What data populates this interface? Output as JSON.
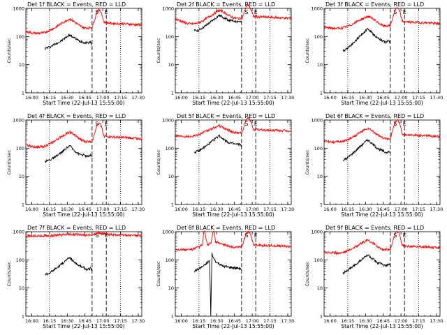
{
  "figure": {
    "panel_xlabel": "Start Time (22-Jul-13 15:55:00)",
    "panel_ylabel": "Counts/sec"
  },
  "colors": {
    "events": "#000000",
    "lld": "#ff0000",
    "axes": "#000000",
    "background": "#ffffff"
  },
  "chart_data": [
    {
      "type": "line",
      "title": "Det 1f  BLACK = Events, RED = LLD",
      "xlabel": "Start Time (22-Jul-13 15:55:00)",
      "ylabel": "Counts/sec",
      "x_unit": "minutes since 15:55:00",
      "xlim": [
        0,
        98
      ],
      "ylim": [
        1,
        1000
      ],
      "yscale": "log",
      "x_ticks": [
        "16:00",
        "16:15",
        "16:30",
        "16:45",
        "17:00",
        "17:15",
        "17:30"
      ],
      "y_ticks": [
        "1",
        "10",
        "100",
        "1000"
      ],
      "markers": [
        "S",
        "E"
      ],
      "series": [
        {
          "name": "BLACK = Events",
          "x": [
            16,
            20,
            25,
            30,
            35,
            37,
            40,
            45,
            48,
            50,
            52,
            55,
            56
          ],
          "y": [
            38,
            42,
            55,
            70,
            100,
            115,
            95,
            70,
            65,
            60,
            62,
            60,
            50
          ]
        },
        {
          "name": "RED = LLD",
          "x": [
            0,
            5,
            10,
            15,
            20,
            25,
            30,
            35,
            37,
            40,
            45,
            50,
            55,
            56,
            58,
            60,
            62,
            64,
            66,
            70,
            75,
            80,
            85,
            90,
            95,
            98
          ],
          "y": [
            150,
            135,
            130,
            135,
            165,
            210,
            290,
            380,
            420,
            360,
            250,
            200,
            210,
            210,
            380,
            750,
            900,
            700,
            320,
            300,
            290,
            285,
            280,
            270,
            260,
            255
          ]
        }
      ]
    },
    {
      "type": "line",
      "title": "Det 2f  BLACK = Events, RED = LLD",
      "xlabel": "Start Time (22-Jul-13 15:55:00)",
      "ylabel": "Counts/sec",
      "x_unit": "minutes since 15:55:00",
      "xlim": [
        0,
        98
      ],
      "ylim": [
        1,
        1000
      ],
      "yscale": "log",
      "x_ticks": [
        "16:00",
        "16:15",
        "16:30",
        "16:45",
        "17:00",
        "17:15",
        "17:30"
      ],
      "y_ticks": [
        "1",
        "10",
        "100",
        "1000"
      ],
      "markers": [
        "S",
        "E"
      ],
      "series": [
        {
          "name": "BLACK = Events",
          "x": [
            16,
            20,
            25,
            30,
            35,
            37,
            40,
            45,
            50,
            55,
            56
          ],
          "y": [
            160,
            170,
            230,
            330,
            480,
            560,
            500,
            380,
            350,
            340,
            310
          ]
        },
        {
          "name": "RED = LLD",
          "x": [
            0,
            5,
            10,
            15,
            20,
            25,
            30,
            35,
            37,
            40,
            45,
            50,
            55,
            56,
            58,
            60,
            62,
            64,
            66,
            70,
            75,
            80,
            85,
            90,
            95,
            98
          ],
          "y": [
            420,
            350,
            290,
            280,
            310,
            400,
            550,
            750,
            850,
            780,
            570,
            450,
            430,
            430,
            650,
            1200,
            1350,
            900,
            520,
            500,
            490,
            480,
            470,
            460,
            450,
            440
          ]
        }
      ]
    },
    {
      "type": "line",
      "title": "Det 3f  BLACK = Events, RED = LLD",
      "xlabel": "Start Time (22-Jul-13 15:55:00)",
      "ylabel": "Counts/sec",
      "x_unit": "minutes since 15:55:00",
      "xlim": [
        0,
        98
      ],
      "ylim": [
        1,
        1000
      ],
      "yscale": "log",
      "x_ticks": [
        "16:00",
        "16:15",
        "16:30",
        "16:45",
        "17:00",
        "17:15",
        "17:30"
      ],
      "y_ticks": [
        "1",
        "10",
        "100",
        "1000"
      ],
      "markers": [
        "S",
        "E"
      ],
      "series": [
        {
          "name": "BLACK = Events",
          "x": [
            16,
            20,
            25,
            30,
            35,
            37,
            40,
            45,
            50,
            52,
            55,
            56
          ],
          "y": [
            30,
            40,
            60,
            100,
            160,
            190,
            140,
            90,
            70,
            62,
            70,
            60
          ]
        },
        {
          "name": "RED = LLD",
          "x": [
            0,
            5,
            10,
            15,
            20,
            25,
            30,
            35,
            37,
            40,
            45,
            50,
            55,
            56,
            58,
            60,
            62,
            64,
            66,
            70,
            75,
            80,
            85,
            90,
            95,
            98
          ],
          "y": [
            215,
            200,
            195,
            200,
            230,
            290,
            380,
            480,
            520,
            460,
            320,
            240,
            240,
            240,
            450,
            900,
            1050,
            800,
            350,
            330,
            320,
            315,
            310,
            300,
            290,
            280
          ]
        }
      ]
    },
    {
      "type": "line",
      "title": "Det 4f  BLACK = Events, RED = LLD",
      "xlabel": "Start Time (22-Jul-13 15:55:00)",
      "ylabel": "Counts/sec",
      "x_unit": "minutes since 15:55:00",
      "xlim": [
        0,
        98
      ],
      "ylim": [
        1,
        1000
      ],
      "yscale": "log",
      "x_ticks": [
        "16:00",
        "16:15",
        "16:30",
        "16:45",
        "17:00",
        "17:15",
        "17:30"
      ],
      "y_ticks": [
        "1",
        "10",
        "100",
        "1000"
      ],
      "markers": [
        "S",
        "E"
      ],
      "series": [
        {
          "name": "BLACK = Events",
          "x": [
            16,
            20,
            25,
            30,
            35,
            37,
            40,
            45,
            50,
            52,
            55,
            56
          ],
          "y": [
            34,
            38,
            48,
            70,
            105,
            125,
            90,
            62,
            55,
            50,
            55,
            48
          ]
        },
        {
          "name": "RED = LLD",
          "x": [
            0,
            5,
            10,
            15,
            20,
            25,
            30,
            35,
            37,
            40,
            45,
            50,
            55,
            56,
            58,
            60,
            62,
            64,
            66,
            70,
            75,
            80,
            85,
            90,
            95,
            98
          ],
          "y": [
            130,
            115,
            110,
            115,
            140,
            185,
            260,
            340,
            380,
            320,
            220,
            170,
            175,
            175,
            330,
            650,
            800,
            600,
            270,
            255,
            245,
            240,
            235,
            230,
            220,
            210
          ]
        }
      ]
    },
    {
      "type": "line",
      "title": "Det 5f  BLACK = Events, RED = LLD",
      "xlabel": "Start Time (22-Jul-13 15:55:00)",
      "ylabel": "Counts/sec",
      "x_unit": "minutes since 15:55:00",
      "xlim": [
        0,
        98
      ],
      "ylim": [
        1,
        1000
      ],
      "yscale": "log",
      "x_ticks": [
        "16:00",
        "16:15",
        "16:30",
        "16:45",
        "17:00",
        "17:15",
        "17:30"
      ],
      "y_ticks": [
        "1",
        "10",
        "100",
        "1000"
      ],
      "markers": [
        "S",
        "E"
      ],
      "series": [
        {
          "name": "BLACK = Events",
          "x": [
            16,
            20,
            25,
            30,
            35,
            37,
            40,
            45,
            50,
            55,
            56
          ],
          "y": [
            72,
            80,
            110,
            160,
            240,
            280,
            220,
            160,
            140,
            135,
            120
          ]
        },
        {
          "name": "RED = LLD",
          "x": [
            0,
            5,
            10,
            15,
            20,
            25,
            30,
            35,
            37,
            40,
            45,
            50,
            55,
            56,
            58,
            60,
            62,
            64,
            66,
            70,
            75,
            80,
            85,
            90,
            95,
            98
          ],
          "y": [
            280,
            270,
            265,
            270,
            310,
            380,
            470,
            580,
            620,
            550,
            430,
            360,
            350,
            350,
            560,
            1050,
            1200,
            850,
            470,
            450,
            440,
            430,
            430,
            420,
            410,
            400
          ]
        }
      ]
    },
    {
      "type": "line",
      "title": "Det 6f  BLACK = Events, RED = LLD",
      "xlabel": "Start Time (22-Jul-13 15:55:00)",
      "ylabel": "Counts/sec",
      "x_unit": "minutes since 15:55:00",
      "xlim": [
        0,
        98
      ],
      "ylim": [
        1,
        1000
      ],
      "yscale": "log",
      "x_ticks": [
        "16:00",
        "16:15",
        "16:30",
        "16:45",
        "17:00",
        "17:15",
        "17:30"
      ],
      "y_ticks": [
        "1",
        "10",
        "100",
        "1000"
      ],
      "markers": [
        "S",
        "E"
      ],
      "series": [
        {
          "name": "BLACK = Events",
          "x": [
            16,
            20,
            25,
            30,
            35,
            37,
            40,
            45,
            50,
            52,
            55,
            56
          ],
          "y": [
            36,
            46,
            70,
            110,
            170,
            200,
            150,
            100,
            78,
            70,
            75,
            65
          ]
        },
        {
          "name": "RED = LLD",
          "x": [
            0,
            5,
            10,
            15,
            20,
            25,
            30,
            35,
            37,
            40,
            45,
            50,
            55,
            56,
            58,
            60,
            62,
            64,
            66,
            70,
            75,
            80,
            85,
            90,
            95,
            98
          ],
          "y": [
            180,
            170,
            165,
            170,
            200,
            260,
            350,
            460,
            500,
            430,
            300,
            220,
            220,
            220,
            420,
            850,
            1000,
            760,
            320,
            300,
            290,
            285,
            280,
            270,
            260,
            250
          ]
        }
      ]
    },
    {
      "type": "line",
      "title": "Det 7f  BLACK = Events, RED = LLD",
      "xlabel": "Start Time (22-Jul-13 15:55:00)",
      "ylabel": "Counts/sec",
      "x_unit": "minutes since 15:55:00",
      "xlim": [
        0,
        98
      ],
      "ylim": [
        1,
        1000
      ],
      "yscale": "log",
      "x_ticks": [
        "16:00",
        "16:15",
        "16:30",
        "16:45",
        "17:00",
        "17:15",
        "17:30"
      ],
      "y_ticks": [
        "1",
        "10",
        "100",
        "1000"
      ],
      "markers": [
        "S",
        "E"
      ],
      "series": [
        {
          "name": "BLACK = Events",
          "x": [
            16,
            20,
            25,
            30,
            35,
            37,
            40,
            45,
            50,
            52,
            55,
            56
          ],
          "y": [
            30,
            34,
            48,
            70,
            105,
            120,
            90,
            62,
            50,
            45,
            50,
            42
          ]
        },
        {
          "name": "RED = LLD",
          "x": [
            0,
            10,
            20,
            30,
            37,
            45,
            55,
            60,
            70,
            80,
            90,
            98
          ],
          "y": [
            700,
            710,
            720,
            760,
            820,
            780,
            740,
            900,
            800,
            760,
            740,
            730
          ]
        }
      ]
    },
    {
      "type": "line",
      "title": "Det 8f  BLACK = Events, RED = LLD",
      "xlabel": "Start Time (22-Jul-13 15:55:00)",
      "ylabel": "Counts/sec",
      "x_unit": "minutes since 15:55:00",
      "xlim": [
        0,
        98
      ],
      "ylim": [
        1,
        1000
      ],
      "yscale": "log",
      "x_ticks": [
        "16:00",
        "16:15",
        "16:30",
        "16:45",
        "17:00",
        "17:15",
        "17:30"
      ],
      "y_ticks": [
        "1",
        "10",
        "100",
        "1000"
      ],
      "markers": [
        "S",
        "E"
      ],
      "series": [
        {
          "name": "BLACK = Events",
          "x": [
            16,
            20,
            25,
            29,
            30,
            31,
            32,
            35,
            38,
            40,
            45,
            50,
            55,
            56
          ],
          "y": [
            40,
            48,
            65,
            95,
            1,
            180,
            120,
            80,
            70,
            60,
            55,
            52,
            50,
            45
          ]
        },
        {
          "name": "RED = LLD",
          "x": [
            0,
            5,
            10,
            15,
            20,
            23,
            24,
            25,
            27,
            30,
            32,
            33,
            34,
            36,
            40,
            45,
            50,
            55,
            56,
            58,
            60,
            62,
            64,
            66,
            70,
            80,
            90,
            98
          ],
          "y": [
            240,
            230,
            230,
            240,
            290,
            340,
            1000,
            1000,
            330,
            380,
            1000,
            1000,
            400,
            420,
            360,
            300,
            280,
            280,
            280,
            500,
            900,
            1000,
            750,
            350,
            330,
            320,
            310,
            300
          ]
        }
      ]
    },
    {
      "type": "line",
      "title": "Det 9f  BLACK = Events, RED = LLD",
      "xlabel": "Start Time (22-Jul-13 15:55:00)",
      "ylabel": "Counts/sec",
      "x_unit": "minutes since 15:55:00",
      "xlim": [
        0,
        98
      ],
      "ylim": [
        1,
        1000
      ],
      "yscale": "log",
      "x_ticks": [
        "16:00",
        "16:15",
        "16:30",
        "16:45",
        "17:00",
        "17:15",
        "17:30"
      ],
      "y_ticks": [
        "1",
        "10",
        "100",
        "1000"
      ],
      "markers": [
        "S",
        "E"
      ],
      "series": [
        {
          "name": "BLACK = Events",
          "x": [
            16,
            20,
            25,
            30,
            35,
            37,
            40,
            45,
            50,
            52,
            55,
            56
          ],
          "y": [
            35,
            42,
            60,
            90,
            130,
            150,
            115,
            80,
            68,
            62,
            68,
            58
          ]
        },
        {
          "name": "RED = LLD",
          "x": [
            0,
            5,
            10,
            15,
            20,
            25,
            30,
            35,
            37,
            40,
            45,
            50,
            55,
            56,
            58,
            60,
            62,
            64,
            66,
            70,
            75,
            80,
            85,
            90,
            95,
            98
          ],
          "y": [
            190,
            180,
            175,
            180,
            210,
            270,
            360,
            460,
            500,
            430,
            300,
            230,
            230,
            230,
            430,
            850,
            1000,
            760,
            330,
            310,
            300,
            295,
            290,
            280,
            270,
            260
          ]
        }
      ]
    }
  ]
}
